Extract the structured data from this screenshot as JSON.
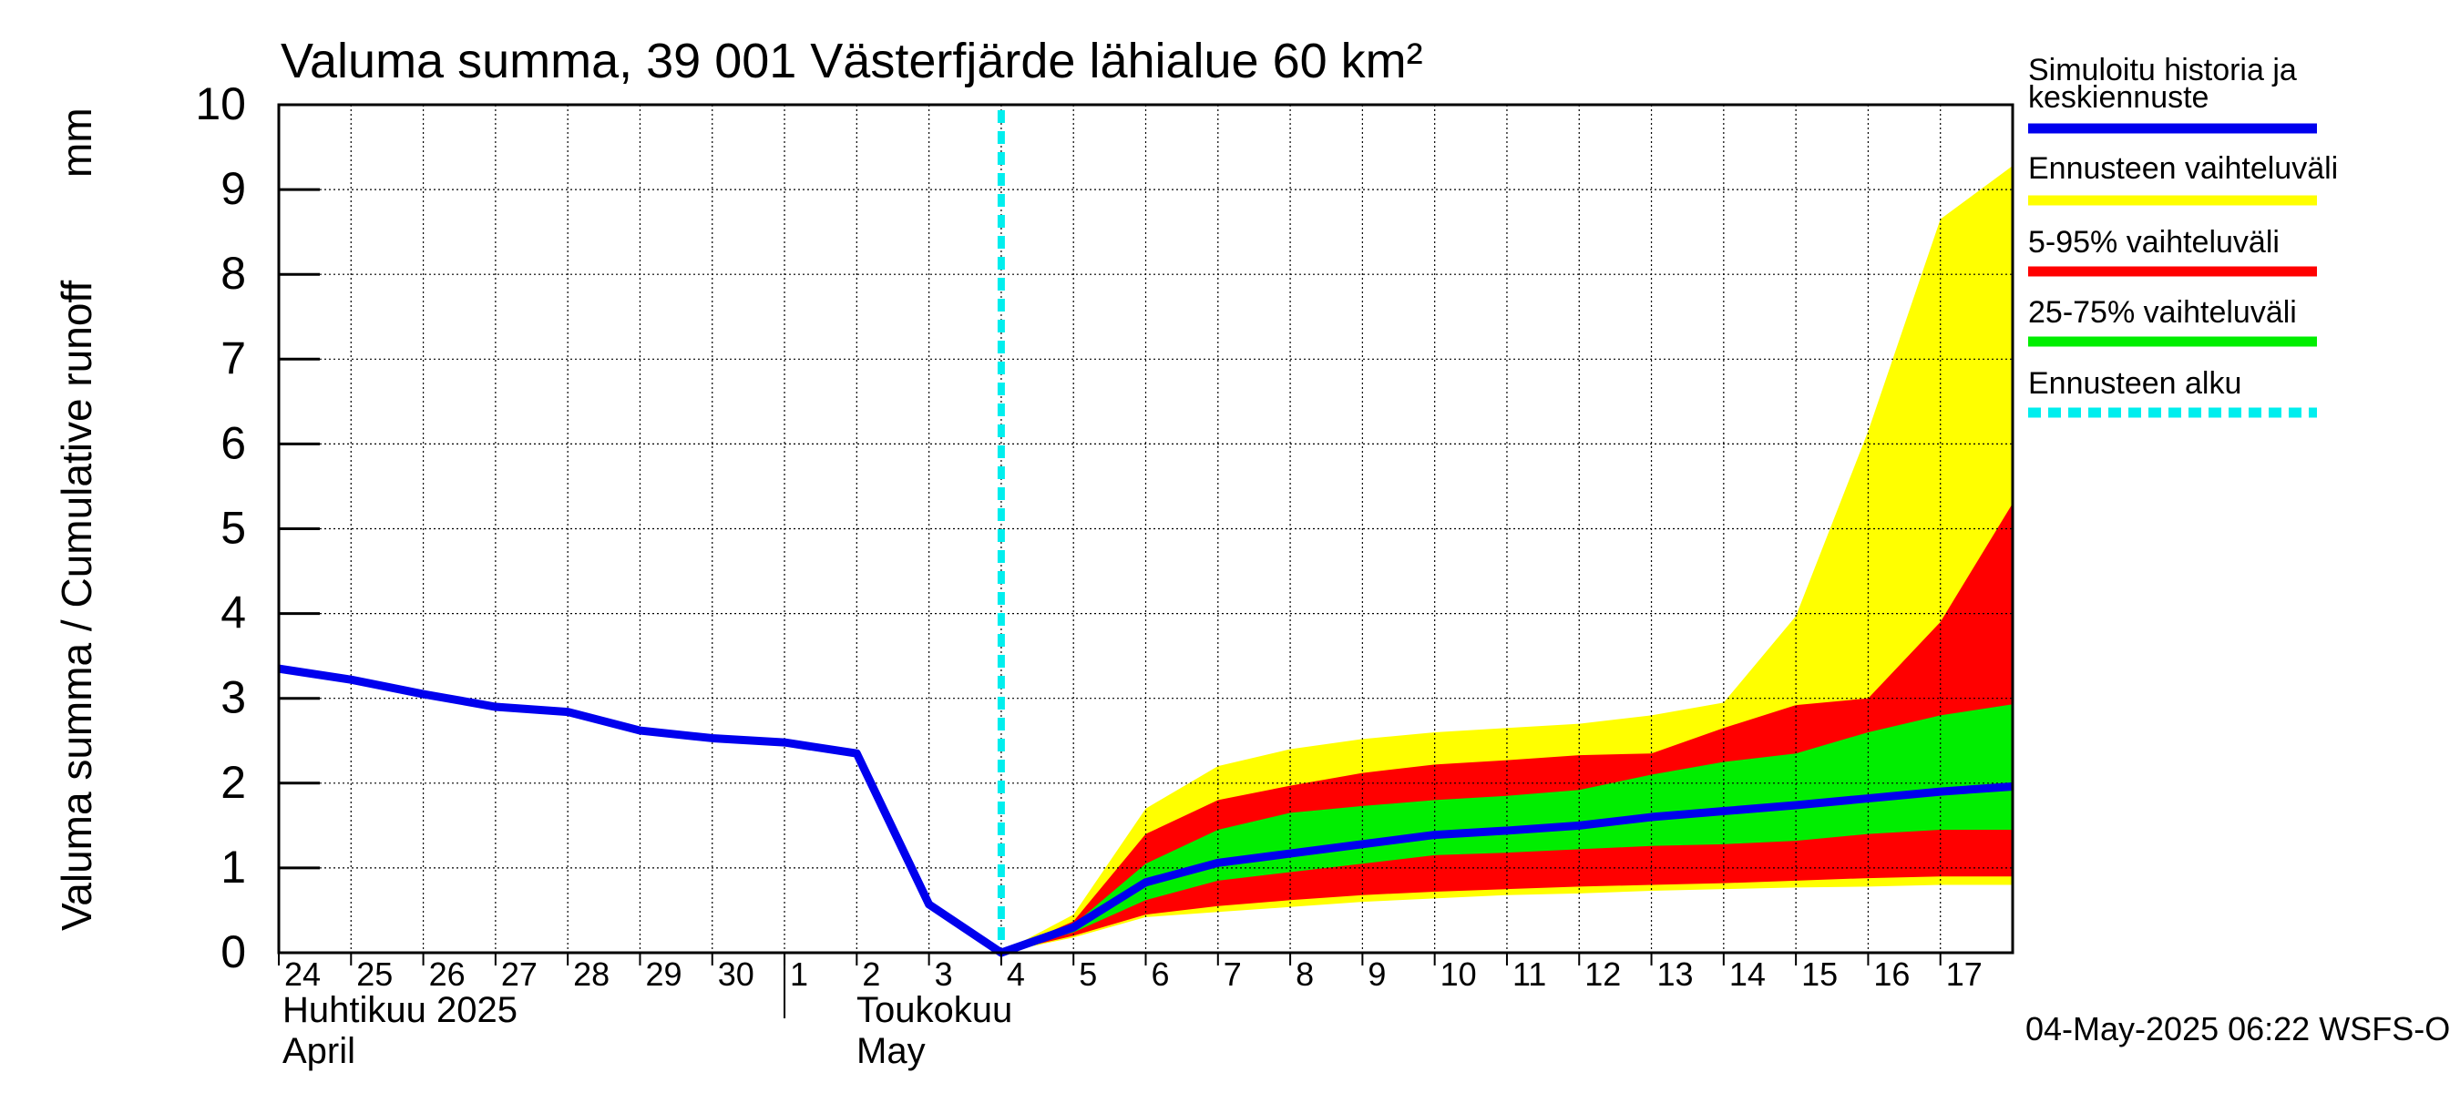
{
  "chart_data": {
    "type": "area",
    "title": "Valuma summa, 39 001 Västerfjärde lähialue 60 km²",
    "ylabel_left": "Valuma summa / Cumulative runoff",
    "ylabel_unit": "mm",
    "ylim": [
      0,
      10
    ],
    "y_ticks": [
      "0",
      "1",
      "2",
      "3",
      "4",
      "5",
      "6",
      "7",
      "8",
      "9",
      "10"
    ],
    "x_tick_labels": [
      "24",
      "25",
      "26",
      "27",
      "28",
      "29",
      "30",
      "1",
      "2",
      "3",
      "4",
      "5",
      "6",
      "7",
      "8",
      "9",
      "10",
      "11",
      "12",
      "13",
      "14",
      "15",
      "16",
      "17"
    ],
    "x_dates": [
      "2025-04-24",
      "2025-04-25",
      "2025-04-26",
      "2025-04-27",
      "2025-04-28",
      "2025-04-29",
      "2025-04-30",
      "2025-05-01",
      "2025-05-02",
      "2025-05-03",
      "2025-05-04",
      "2025-05-05",
      "2025-05-06",
      "2025-05-07",
      "2025-05-08",
      "2025-05-09",
      "2025-05-10",
      "2025-05-11",
      "2025-05-12",
      "2025-05-13",
      "2025-05-14",
      "2025-05-15",
      "2025-05-16",
      "2025-05-17"
    ],
    "month_labels": [
      {
        "line1": "Huhtikuu  2025",
        "line2": "April"
      },
      {
        "line1": "Toukokuu",
        "line2": "May"
      }
    ],
    "grid": true,
    "legend_position": "right",
    "legend": [
      {
        "label_line1": "Simuloitu historia ja",
        "label_line2": "keskiennuste",
        "color": "#0000ee",
        "style": "solid"
      },
      {
        "label_line1": "Ennusteen vaihteluväli",
        "label_line2": "",
        "color": "#ffff00",
        "style": "solid"
      },
      {
        "label_line1": "5-95% vaihteluväli",
        "label_line2": "",
        "color": "#ff0000",
        "style": "solid"
      },
      {
        "label_line1": "25-75% vaihteluväli",
        "label_line2": "",
        "color": "#00ee00",
        "style": "solid"
      },
      {
        "label_line1": "Ennusteen alku",
        "label_line2": "",
        "color": "#00eeee",
        "style": "dashed"
      }
    ],
    "forecast_start": "2025-05-04T00:00",
    "history": {
      "x": [
        "2025-04-24T00:00",
        "2025-04-25T00:00",
        "2025-04-26T00:00",
        "2025-04-27T00:00",
        "2025-04-28T00:00",
        "2025-04-29T00:00",
        "2025-04-30T00:00",
        "2025-05-01T00:00",
        "2025-05-02T00:00",
        "2025-05-03T00:00",
        "2025-05-04T00:00"
      ],
      "y": [
        3.35,
        3.22,
        3.05,
        2.9,
        2.84,
        2.62,
        2.53,
        2.48,
        2.35,
        0.57,
        0.0
      ]
    },
    "forecast": {
      "x": [
        "2025-05-04T00:00",
        "2025-05-05T00:00",
        "2025-05-06T00:00",
        "2025-05-07T00:00",
        "2025-05-08T00:00",
        "2025-05-09T00:00",
        "2025-05-10T00:00",
        "2025-05-11T00:00",
        "2025-05-12T00:00",
        "2025-05-13T00:00",
        "2025-05-14T00:00",
        "2025-05-15T00:00",
        "2025-05-16T00:00",
        "2025-05-17T00:00",
        "2025-05-18T00:00"
      ],
      "min": [
        0.0,
        0.18,
        0.42,
        0.48,
        0.54,
        0.6,
        0.64,
        0.68,
        0.7,
        0.73,
        0.75,
        0.77,
        0.78,
        0.8,
        0.8
      ],
      "p5": [
        0.0,
        0.2,
        0.45,
        0.55,
        0.62,
        0.68,
        0.72,
        0.75,
        0.78,
        0.8,
        0.82,
        0.85,
        0.88,
        0.9,
        0.9
      ],
      "p25": [
        0.0,
        0.24,
        0.62,
        0.85,
        0.95,
        1.05,
        1.15,
        1.18,
        1.22,
        1.26,
        1.28,
        1.32,
        1.4,
        1.45,
        1.45
      ],
      "mean": [
        0.0,
        0.3,
        0.83,
        1.06,
        1.17,
        1.28,
        1.39,
        1.44,
        1.5,
        1.6,
        1.67,
        1.74,
        1.82,
        1.9,
        1.96
      ],
      "p75": [
        0.0,
        0.33,
        1.05,
        1.45,
        1.65,
        1.73,
        1.8,
        1.85,
        1.92,
        2.1,
        2.25,
        2.35,
        2.6,
        2.8,
        2.93
      ],
      "p95": [
        0.0,
        0.37,
        1.4,
        1.8,
        1.97,
        2.12,
        2.22,
        2.27,
        2.33,
        2.35,
        2.65,
        2.92,
        3.0,
        3.9,
        5.3
      ],
      "max": [
        0.0,
        0.45,
        1.7,
        2.2,
        2.4,
        2.52,
        2.6,
        2.65,
        2.7,
        2.8,
        2.95,
        3.97,
        6.15,
        8.65,
        9.28
      ]
    },
    "timestamp": "04-May-2025 06:22 WSFS-O"
  }
}
